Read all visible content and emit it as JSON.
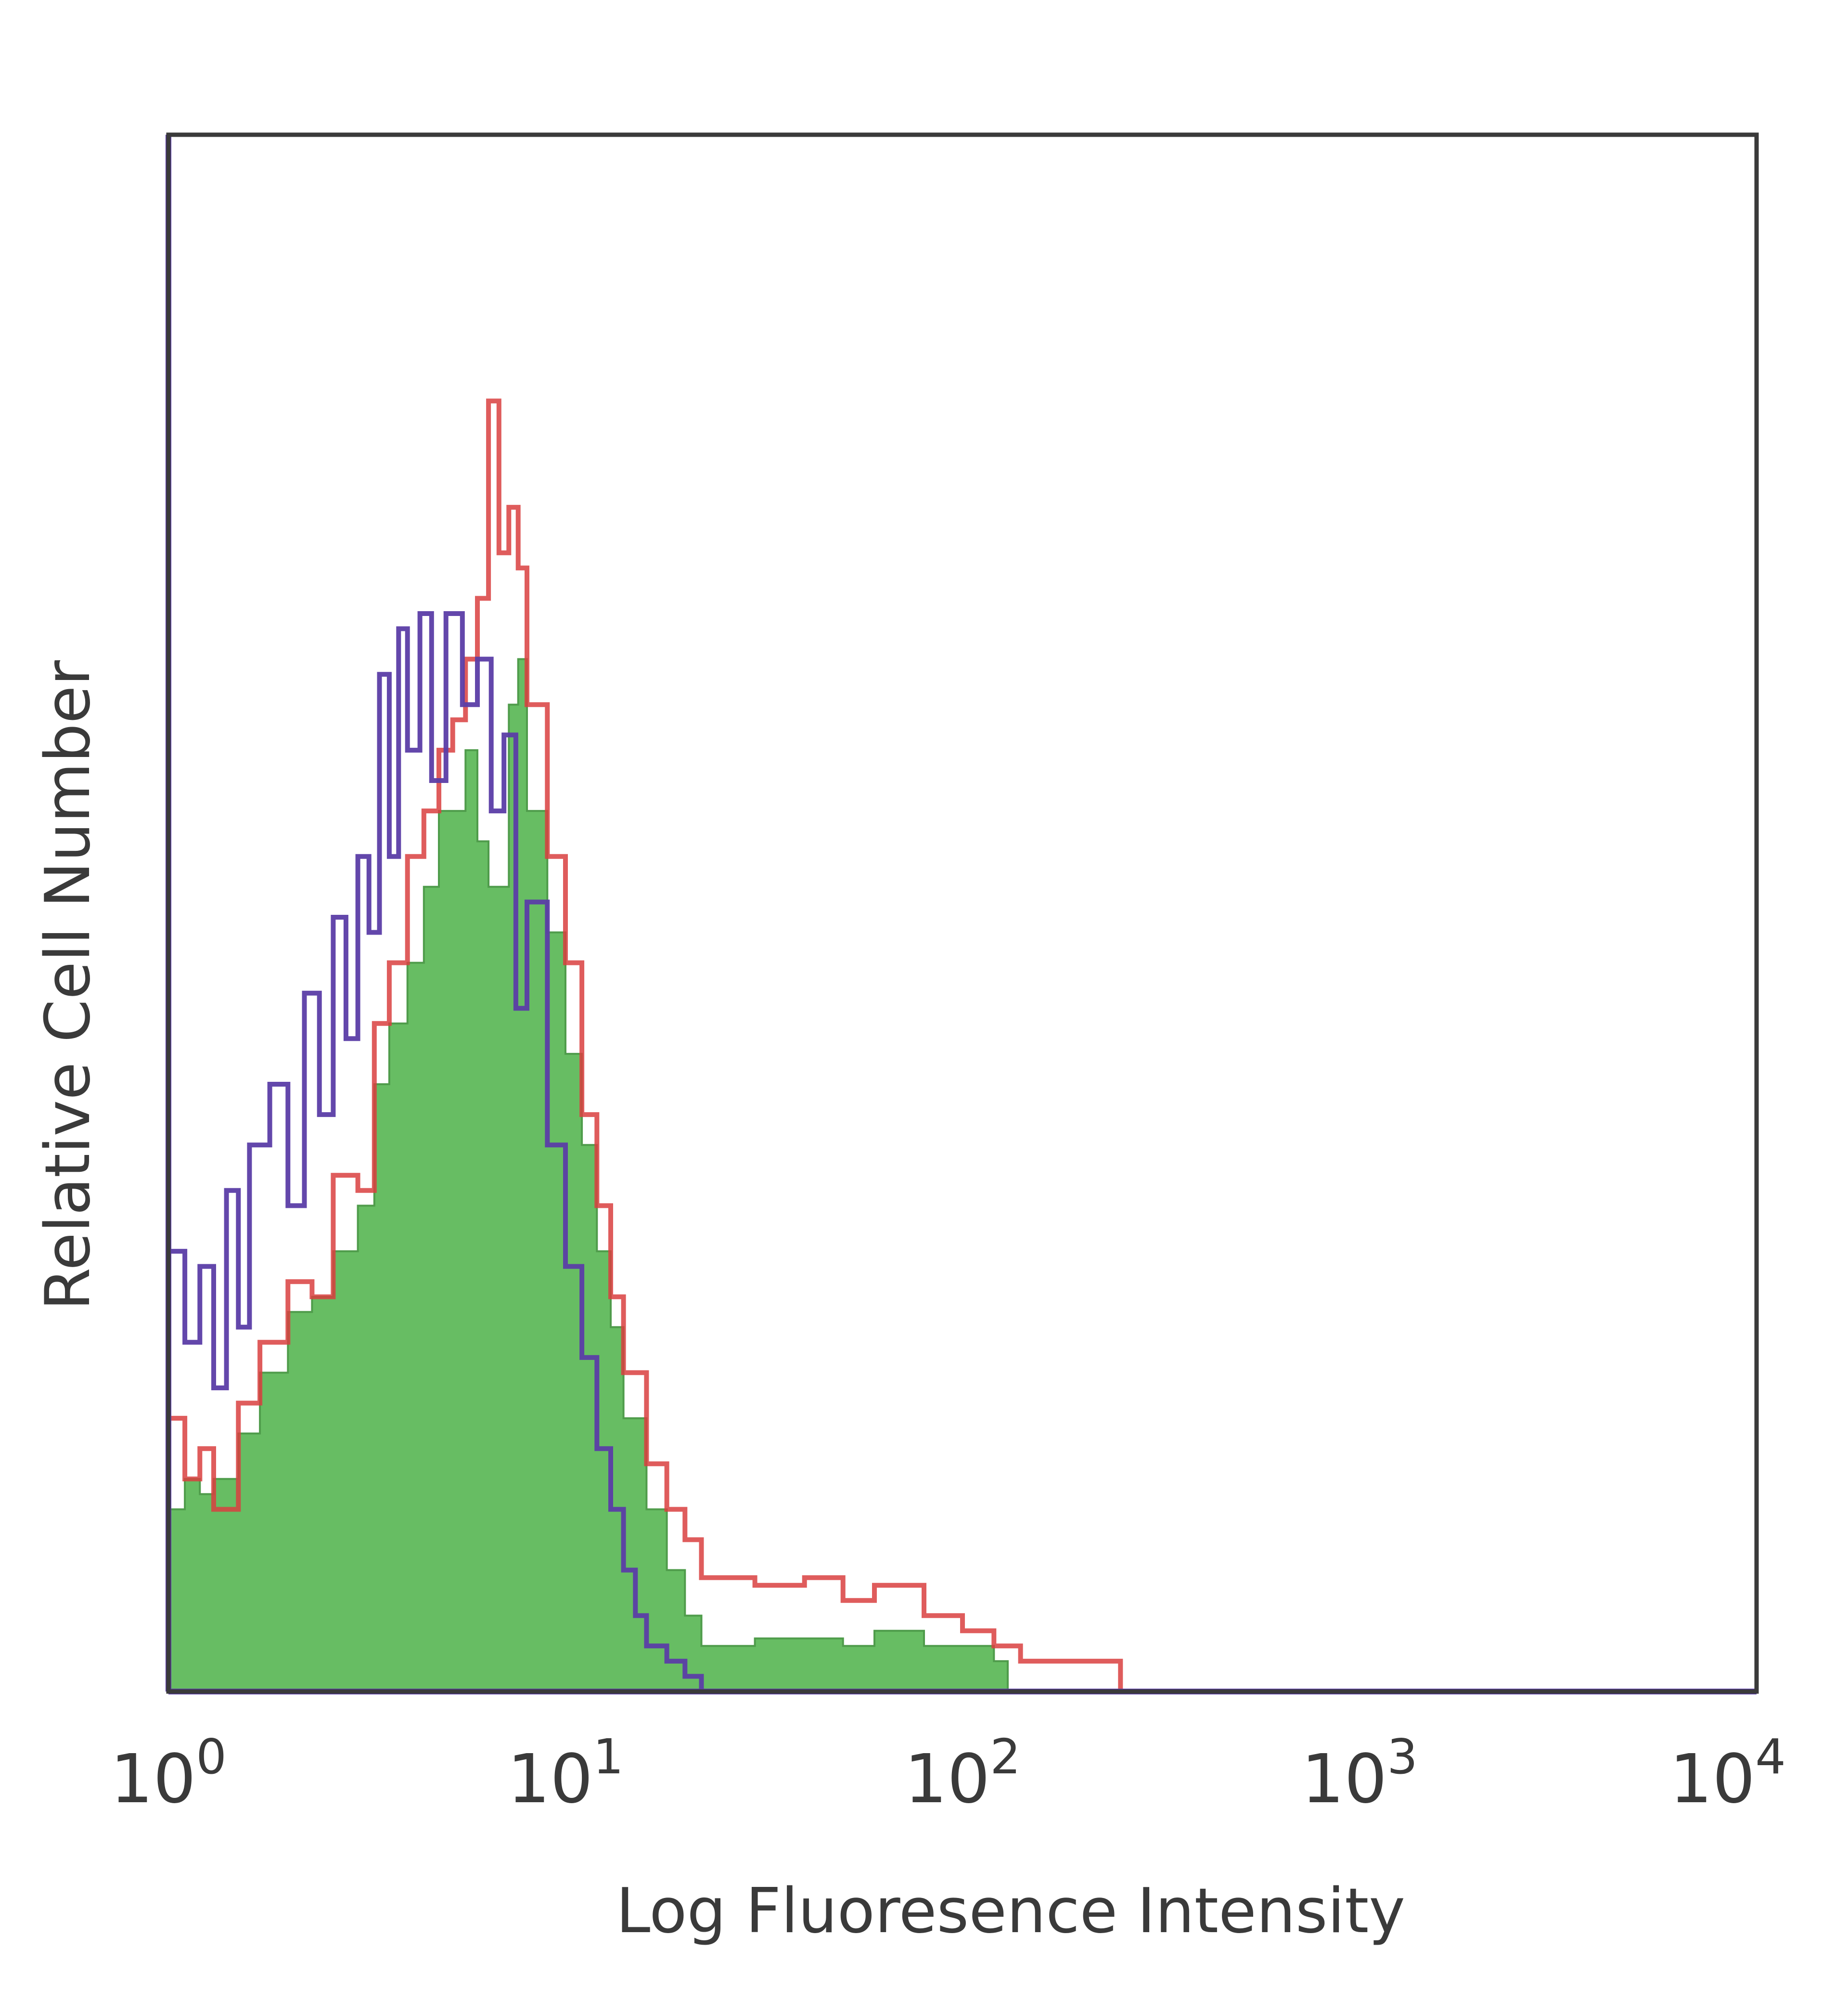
{
  "chart_data": {
    "type": "histogram",
    "title": "",
    "xlabel": "Log Fluoresence Intensity",
    "ylabel": "Relative Cell Number",
    "x_scale": "log",
    "xlim": [
      1,
      10000
    ],
    "x_ticks": [
      {
        "value": 1,
        "base": "10",
        "exp": "0"
      },
      {
        "value": 10,
        "base": "10",
        "exp": "1"
      },
      {
        "value": 100,
        "base": "10",
        "exp": "2"
      },
      {
        "value": 1000,
        "base": "10",
        "exp": "3"
      },
      {
        "value": 10000,
        "base": "10",
        "exp": "4"
      }
    ],
    "ylim": [
      0,
      1
    ],
    "y_ticks_shown": false,
    "grid": false,
    "legend": "none",
    "frame_color": "#3a3a3a",
    "series": [
      {
        "role": "purple-outline",
        "color": "#5b3da6",
        "fill": false,
        "x": [
          1,
          1.1,
          1.2,
          1.3,
          1.4,
          1.5,
          1.6,
          1.8,
          2.0,
          2.2,
          2.4,
          2.6,
          2.8,
          3.0,
          3.2,
          3.4,
          3.6,
          3.8,
          4.0,
          4.3,
          4.6,
          5.0,
          5.5,
          6.0,
          6.5,
          7.0,
          7.5,
          8.0,
          9.0,
          10,
          11,
          12,
          13,
          14,
          15,
          16,
          18,
          20,
          22
        ],
        "y": [
          0.29,
          0.23,
          0.28,
          0.2,
          0.33,
          0.24,
          0.36,
          0.4,
          0.32,
          0.46,
          0.38,
          0.51,
          0.43,
          0.55,
          0.5,
          0.67,
          0.55,
          0.7,
          0.62,
          0.71,
          0.6,
          0.71,
          0.65,
          0.68,
          0.58,
          0.63,
          0.45,
          0.52,
          0.36,
          0.28,
          0.22,
          0.16,
          0.12,
          0.08,
          0.05,
          0.03,
          0.02,
          0.01,
          0.0
        ]
      },
      {
        "role": "red-outline",
        "color": "#d94040",
        "fill": false,
        "x": [
          1,
          1.1,
          1.2,
          1.3,
          1.5,
          1.7,
          2.0,
          2.3,
          2.6,
          3.0,
          3.3,
          3.6,
          4.0,
          4.4,
          4.8,
          5.2,
          5.6,
          6.0,
          6.4,
          6.8,
          7.2,
          7.6,
          8.0,
          9.0,
          10,
          11,
          12,
          13,
          14,
          16,
          18,
          20,
          22,
          25,
          30,
          40,
          50,
          60,
          80,
          100,
          120,
          140,
          160,
          200,
          250
        ],
        "y": [
          0.18,
          0.14,
          0.16,
          0.12,
          0.19,
          0.23,
          0.27,
          0.26,
          0.34,
          0.33,
          0.44,
          0.48,
          0.55,
          0.58,
          0.62,
          0.64,
          0.68,
          0.72,
          0.85,
          0.75,
          0.78,
          0.74,
          0.65,
          0.55,
          0.48,
          0.38,
          0.32,
          0.26,
          0.21,
          0.15,
          0.12,
          0.1,
          0.075,
          0.075,
          0.07,
          0.075,
          0.06,
          0.07,
          0.05,
          0.04,
          0.03,
          0.02,
          0.02,
          0.02,
          0.0
        ]
      },
      {
        "role": "green-filled",
        "color": "#67bd63",
        "fill": true,
        "x": [
          1,
          1.1,
          1.2,
          1.3,
          1.5,
          1.7,
          2.0,
          2.3,
          2.6,
          3.0,
          3.3,
          3.6,
          4.0,
          4.4,
          4.8,
          5.2,
          5.6,
          6.0,
          6.4,
          6.8,
          7.2,
          7.6,
          8.0,
          9.0,
          10,
          11,
          12,
          13,
          14,
          16,
          18,
          20,
          22,
          25,
          30,
          40,
          50,
          60,
          80,
          100,
          120,
          130
        ],
        "y": [
          0.12,
          0.14,
          0.13,
          0.14,
          0.17,
          0.21,
          0.25,
          0.26,
          0.29,
          0.32,
          0.4,
          0.44,
          0.48,
          0.53,
          0.58,
          0.58,
          0.62,
          0.56,
          0.53,
          0.53,
          0.65,
          0.68,
          0.58,
          0.5,
          0.42,
          0.36,
          0.29,
          0.24,
          0.18,
          0.12,
          0.08,
          0.05,
          0.03,
          0.03,
          0.035,
          0.035,
          0.03,
          0.04,
          0.03,
          0.03,
          0.02,
          0.0
        ]
      }
    ]
  }
}
